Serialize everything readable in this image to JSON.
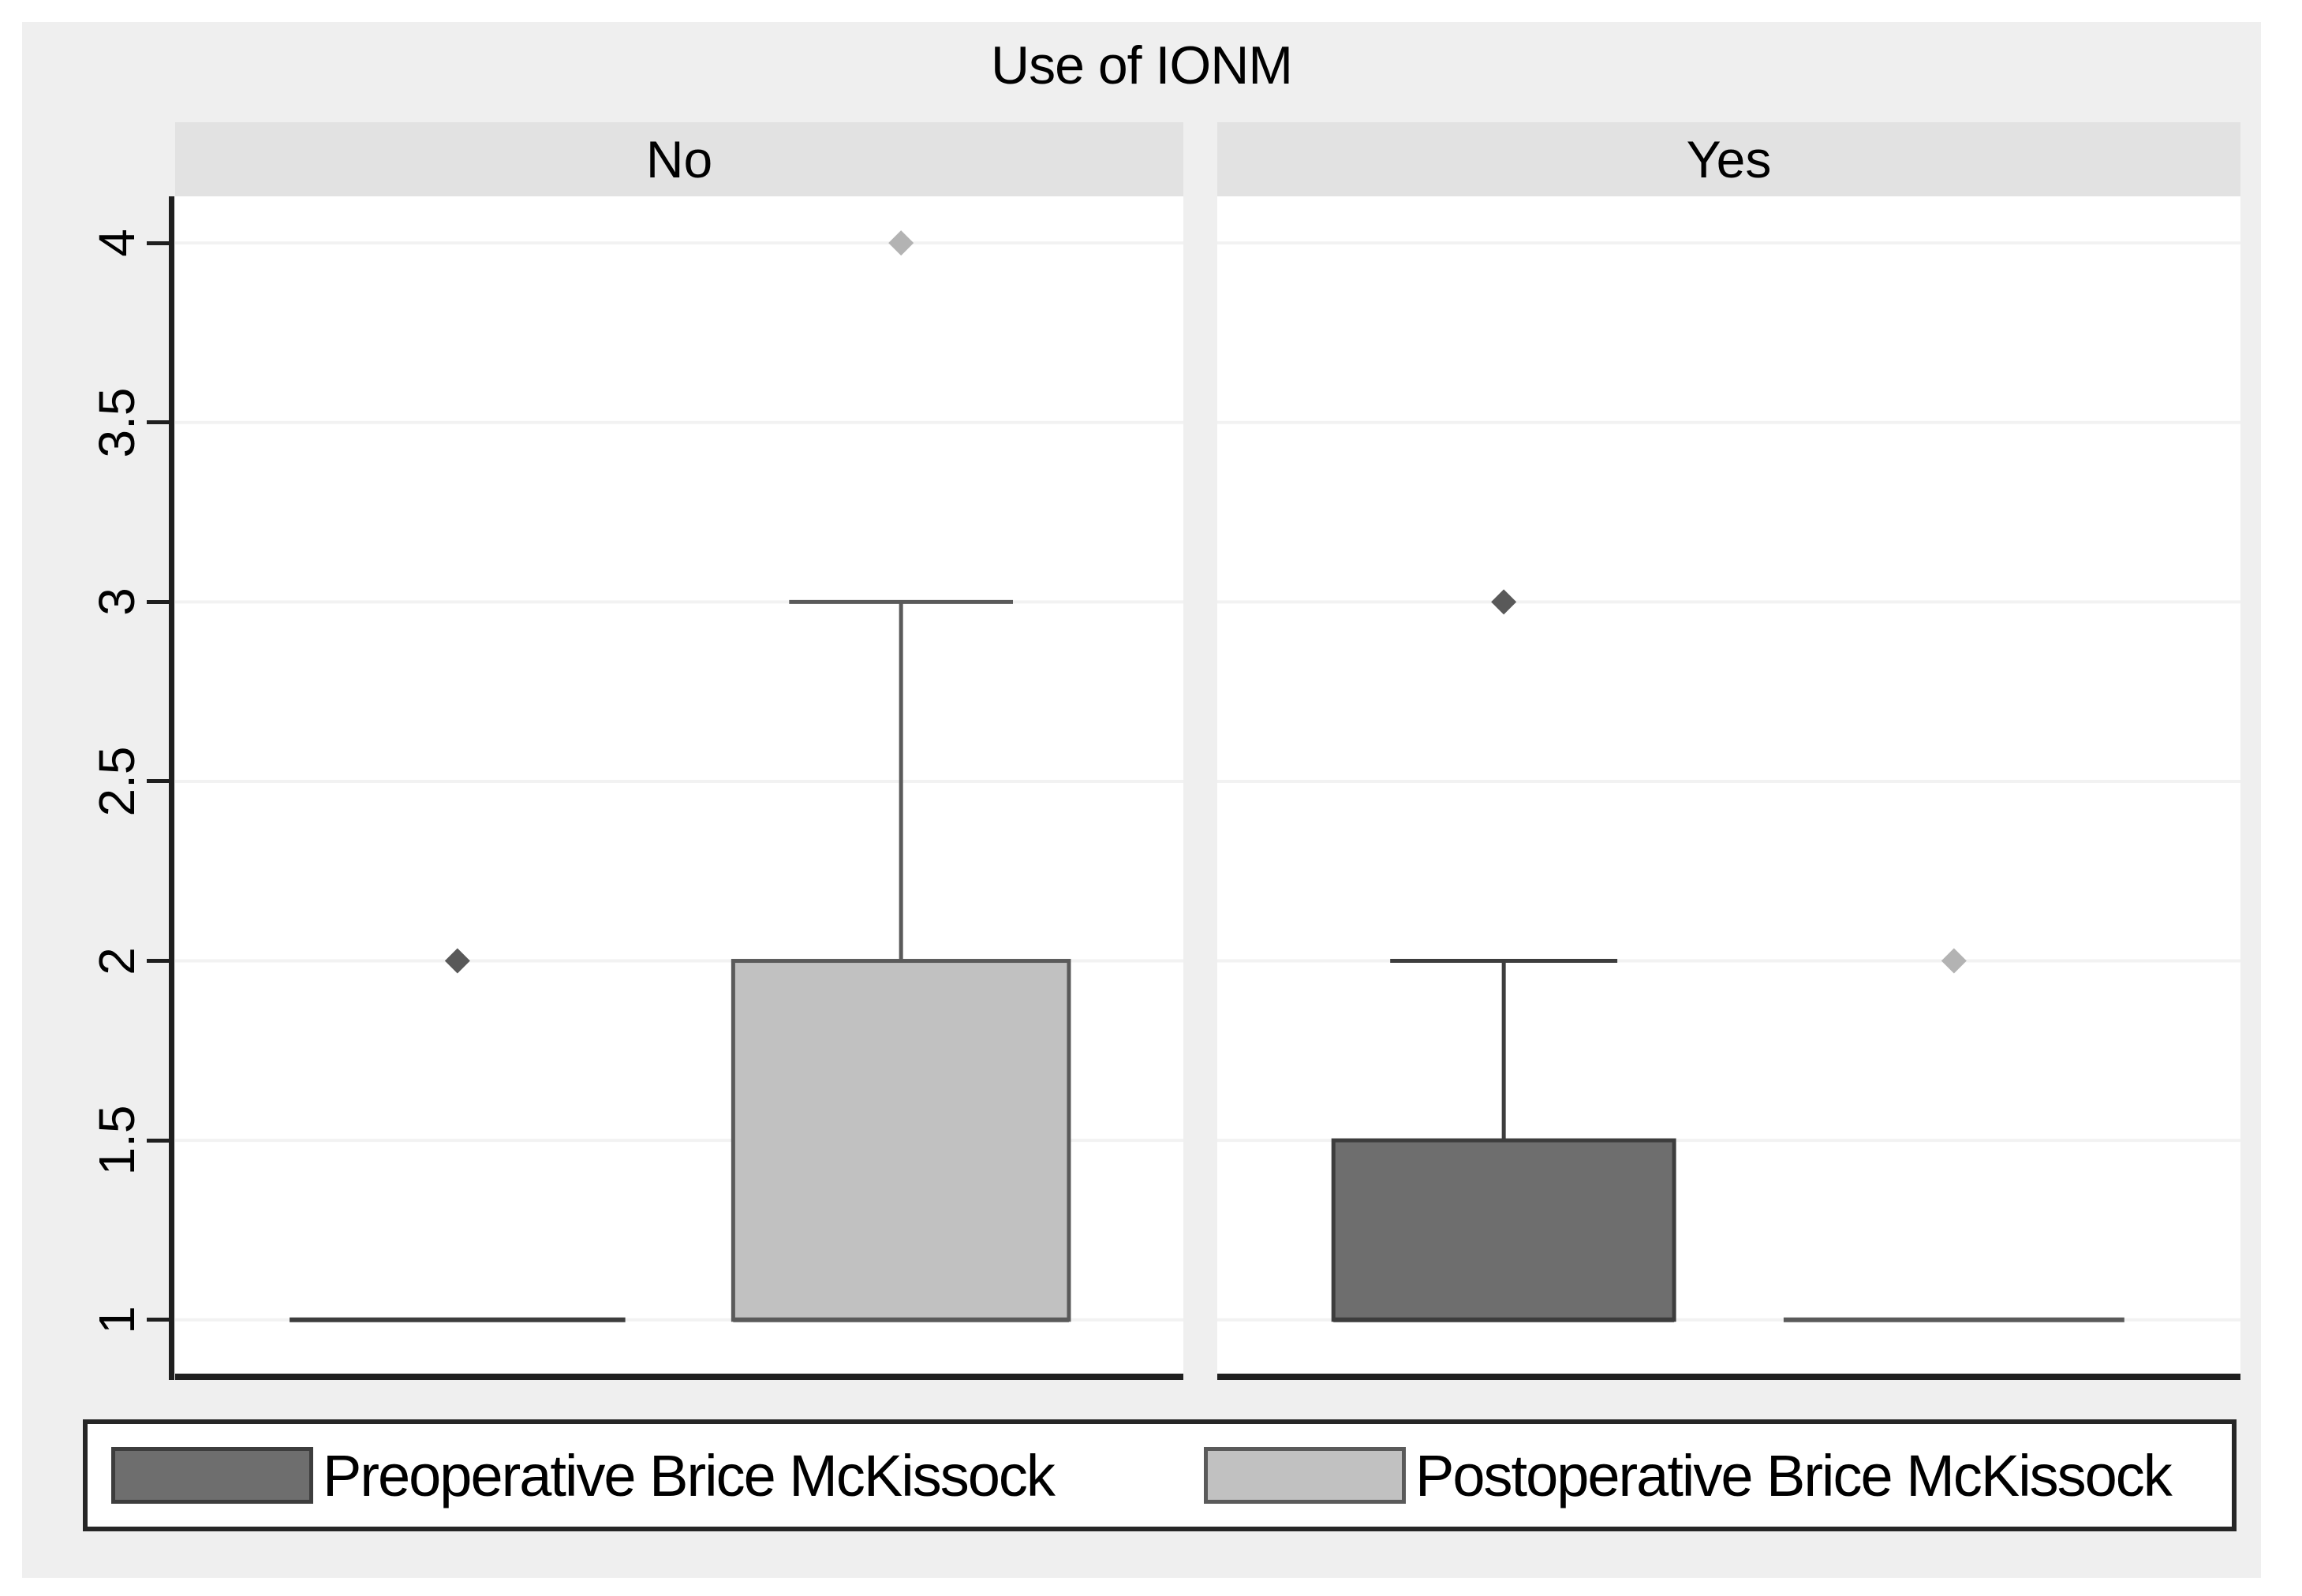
{
  "theme": {
    "window_bg": "#ffffff",
    "fig_bg": "#efefef",
    "header_bg": "#e2e2e2",
    "plot_bg": "#ffffff",
    "grid": "#f2f2f2",
    "axis": "#1f1f1f",
    "text": "#000000",
    "legend_border": "#262626"
  },
  "chart_data": {
    "type": "boxplot",
    "title": "Use of IONM",
    "facets": [
      "No",
      "Yes"
    ],
    "y_ticks": [
      {
        "value": 1,
        "label": "1"
      },
      {
        "value": 1.5,
        "label": "1.5"
      },
      {
        "value": 2,
        "label": "2"
      },
      {
        "value": 2.5,
        "label": "2.5"
      },
      {
        "value": 3,
        "label": "3"
      },
      {
        "value": 3.5,
        "label": "3.5"
      },
      {
        "value": 4,
        "label": "4"
      }
    ],
    "ylim": [
      0.85,
      4.13
    ],
    "grid": true,
    "legend_position": "bottom",
    "series": [
      {
        "name": "Preoperative Brice McKissock",
        "fill": "#6e6e6e",
        "stroke": "#3d3d3d",
        "outlier_color": "#595959"
      },
      {
        "name": "Postoperative Brice McKissock",
        "fill": "#c1c1c1",
        "stroke": "#5a5a5a",
        "outlier_color": "#b3b3b3"
      }
    ],
    "panels": [
      {
        "facet": "No",
        "boxes": [
          {
            "series": 0,
            "whisker_low": 1,
            "q1": 1,
            "median": 1,
            "q3": 1,
            "whisker_high": 1,
            "outliers": [
              2
            ]
          },
          {
            "series": 1,
            "whisker_low": 1,
            "q1": 1,
            "median": 1,
            "q3": 2,
            "whisker_high": 3,
            "outliers": [
              4
            ]
          }
        ]
      },
      {
        "facet": "Yes",
        "boxes": [
          {
            "series": 0,
            "whisker_low": 1,
            "q1": 1,
            "median": 1,
            "q3": 1.5,
            "whisker_high": 2,
            "outliers": [
              3
            ]
          },
          {
            "series": 1,
            "whisker_low": 1,
            "q1": 1,
            "median": 1,
            "q3": 1,
            "whisker_high": 1,
            "outliers": [
              2
            ]
          }
        ]
      }
    ],
    "layout": {
      "box_centers": [
        0.28,
        0.72
      ],
      "box_width_frac": 0.333,
      "cap_width_frac": 0.222
    }
  }
}
